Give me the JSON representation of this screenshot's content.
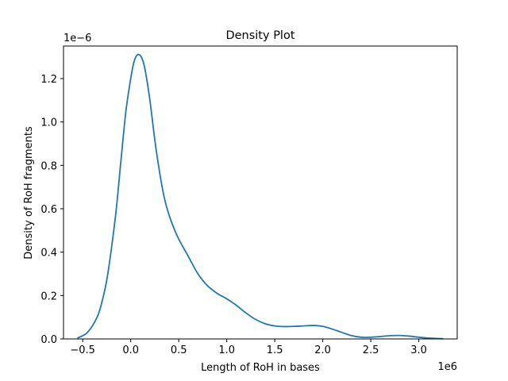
{
  "chart_data": {
    "type": "line",
    "title": "Density Plot",
    "xlabel": "Length of RoH in bases",
    "ylabel": "Density of RoH fragments",
    "x_multiplier_label": "1e6",
    "y_multiplier_label": "1e−6",
    "xlim": [
      -0.7,
      3.4
    ],
    "ylim": [
      0,
      1.35
    ],
    "grid": false,
    "x_ticks": [
      -0.5,
      0.0,
      0.5,
      1.0,
      1.5,
      2.0,
      2.5,
      3.0
    ],
    "x_tick_labels": [
      "−0.5",
      "0.0",
      "0.5",
      "1.0",
      "1.5",
      "2.0",
      "2.5",
      "3.0"
    ],
    "y_ticks": [
      0,
      0.2,
      0.4,
      0.6,
      0.8,
      1.0,
      1.2
    ],
    "y_tick_labels": [
      "0.0",
      "0.2",
      "0.4",
      "0.6",
      "0.8",
      "1.0",
      "1.2"
    ],
    "series": [
      {
        "color": "#1f77b4",
        "x": [
          -0.55,
          -0.45,
          -0.35,
          -0.3,
          -0.25,
          -0.2,
          -0.15,
          -0.1,
          -0.05,
          0.0,
          0.03,
          0.06,
          0.09,
          0.12,
          0.15,
          0.2,
          0.25,
          0.3,
          0.35,
          0.4,
          0.45,
          0.5,
          0.6,
          0.7,
          0.8,
          0.9,
          1.0,
          1.1,
          1.2,
          1.3,
          1.4,
          1.5,
          1.6,
          1.7,
          1.8,
          1.9,
          2.0,
          2.1,
          2.2,
          2.3,
          2.4,
          2.5,
          2.6,
          2.7,
          2.8,
          2.9,
          3.0,
          3.1,
          3.25
        ],
        "y": [
          0.005,
          0.03,
          0.1,
          0.17,
          0.27,
          0.42,
          0.6,
          0.83,
          1.05,
          1.2,
          1.27,
          1.305,
          1.31,
          1.29,
          1.24,
          1.1,
          0.92,
          0.77,
          0.65,
          0.57,
          0.51,
          0.46,
          0.38,
          0.3,
          0.245,
          0.21,
          0.185,
          0.155,
          0.12,
          0.09,
          0.07,
          0.06,
          0.057,
          0.058,
          0.06,
          0.062,
          0.058,
          0.045,
          0.03,
          0.015,
          0.008,
          0.008,
          0.011,
          0.015,
          0.016,
          0.013,
          0.008,
          0.004,
          0.001
        ]
      }
    ]
  }
}
